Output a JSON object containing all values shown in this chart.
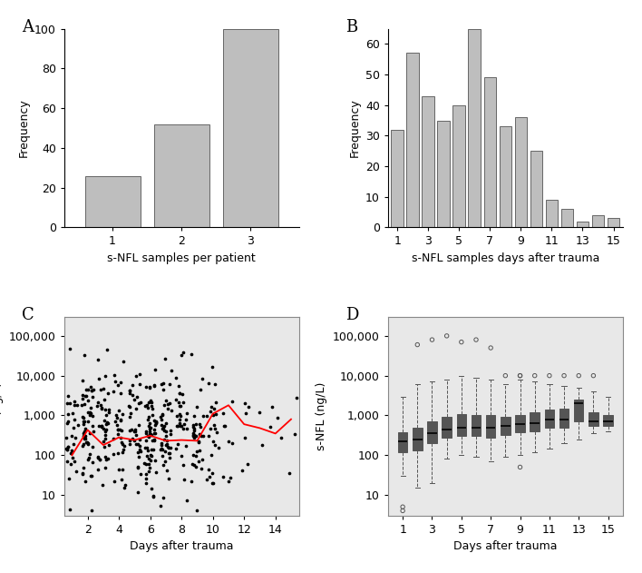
{
  "panel_A": {
    "categories": [
      1,
      2,
      3
    ],
    "values": [
      26,
      52,
      100
    ],
    "xlabel": "s-NFL samples per patient",
    "ylabel": "Frequency",
    "ylim": [
      0,
      100
    ],
    "yticks": [
      0,
      20,
      40,
      60,
      80,
      100
    ],
    "label": "A"
  },
  "panel_B": {
    "days": [
      1,
      2,
      3,
      4,
      5,
      6,
      7,
      8,
      9,
      10,
      11,
      12,
      13,
      14,
      15
    ],
    "values": [
      32,
      57,
      43,
      35,
      40,
      65,
      49,
      33,
      36,
      25,
      9,
      6,
      2,
      4,
      3
    ],
    "xlabel": "s-NFL samples days after trauma",
    "ylabel": "Frequency",
    "ylim": [
      0,
      65
    ],
    "yticks": [
      0,
      10,
      20,
      30,
      40,
      50,
      60
    ],
    "label": "B"
  },
  "panel_C": {
    "xlabel": "Days after trauma",
    "ylabel": "s-NFL (ng/L)",
    "xlim": [
      0.5,
      15.5
    ],
    "ylim_log": [
      3,
      300000
    ],
    "yticks_log": [
      10,
      100,
      1000,
      10000,
      100000
    ],
    "ytick_labels": [
      "10",
      "100",
      "1,000",
      "10,000",
      "100,000"
    ],
    "xticks": [
      2,
      4,
      6,
      8,
      10,
      12,
      14
    ],
    "red_line_x": [
      1,
      2,
      3,
      4,
      5,
      6,
      7,
      8,
      9,
      10,
      11,
      12,
      13,
      14,
      15
    ],
    "red_line_y": [
      100,
      430,
      180,
      280,
      240,
      310,
      230,
      240,
      230,
      1100,
      1800,
      600,
      480,
      350,
      800
    ],
    "label": "C"
  },
  "panel_D": {
    "xlabel": "Days after trauma",
    "ylabel": "s-NFL (ng/L)",
    "days": [
      1,
      2,
      3,
      4,
      5,
      6,
      7,
      8,
      9,
      10,
      11,
      12,
      13,
      14,
      15
    ],
    "xticks": [
      1,
      3,
      5,
      7,
      9,
      11,
      13,
      15
    ],
    "xlim": [
      0,
      16
    ],
    "ylim_log": [
      3,
      300000
    ],
    "yticks_log": [
      10,
      100,
      1000,
      10000,
      100000
    ],
    "ytick_labels": [
      "10",
      "100",
      "1,000",
      "10,000",
      "100,000"
    ],
    "box_medians": [
      220,
      250,
      350,
      450,
      500,
      500,
      500,
      550,
      600,
      650,
      800,
      800,
      2000,
      700,
      700
    ],
    "box_q1": [
      120,
      130,
      200,
      280,
      300,
      300,
      280,
      330,
      380,
      400,
      500,
      500,
      700,
      550,
      550
    ],
    "box_q3": [
      380,
      500,
      700,
      900,
      1100,
      1000,
      1000,
      900,
      1000,
      1200,
      1400,
      1500,
      2500,
      1200,
      1000
    ],
    "box_whislo": [
      30,
      15,
      20,
      80,
      100,
      90,
      70,
      90,
      100,
      120,
      150,
      200,
      250,
      350,
      400
    ],
    "box_whishi": [
      3000,
      6000,
      7000,
      8000,
      10000,
      9000,
      8000,
      6000,
      8000,
      7000,
      6000,
      5500,
      5000,
      4000,
      3000
    ],
    "outliers_y": [
      4,
      5,
      60000,
      80000,
      100000,
      70000,
      80000,
      50000,
      10000,
      10000,
      10000,
      10000,
      10000,
      10000,
      10000,
      10000,
      50
    ],
    "outliers_x": [
      1,
      1,
      2,
      3,
      4,
      5,
      6,
      7,
      8,
      9,
      9,
      10,
      11,
      12,
      13,
      14,
      9
    ],
    "label": "D"
  },
  "bar_color": "#bebebe",
  "bar_edge_color": "#666666",
  "bg_color": "#e8e8e8",
  "fig_width": 7.08,
  "fig_height": 6.31
}
